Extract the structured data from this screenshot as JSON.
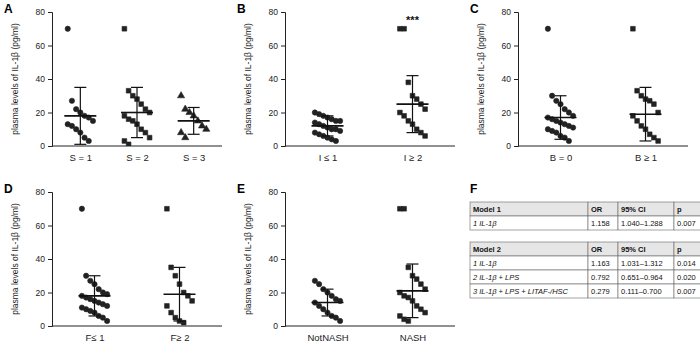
{
  "chart_data": [
    {
      "type": "scatter",
      "title": "A",
      "y_label": "plasma levels of IL-1β (pg/ml)",
      "categories": [
        "S = 1",
        "S = 2",
        "S = 3"
      ],
      "markers": [
        "circle",
        "square",
        "triangle"
      ],
      "color": "#222222",
      "points": [
        [
          70,
          27,
          22,
          20,
          18,
          17,
          15,
          13,
          12,
          10,
          8,
          5,
          3
        ],
        [
          70,
          33,
          30,
          28,
          25,
          22,
          20,
          18,
          16,
          15,
          13,
          10,
          8,
          5,
          3,
          1
        ],
        [
          30,
          22,
          20,
          18,
          15,
          12,
          10,
          8,
          5
        ]
      ],
      "means": [
        18,
        20,
        15
      ],
      "sd": [
        17,
        15,
        8
      ],
      "ylim": [
        0,
        80
      ],
      "yticks": [
        0,
        20,
        40,
        60,
        80
      ]
    },
    {
      "type": "scatter",
      "title": "B",
      "y_label": "plasma levels of IL-1β (pg/ml)",
      "categories": [
        "I ≤ 1",
        "I ≥ 2"
      ],
      "markers": [
        "circle",
        "square"
      ],
      "color": "#222222",
      "points": [
        [
          20,
          19,
          18,
          17,
          16,
          15,
          15,
          14,
          13,
          12,
          11,
          10,
          10,
          9,
          8,
          7,
          6,
          5,
          4,
          3
        ],
        [
          70,
          70,
          38,
          30,
          28,
          25,
          22,
          20,
          18,
          15,
          13,
          10,
          8,
          6
        ]
      ],
      "means": [
        12,
        25
      ],
      "sd": [
        6,
        17
      ],
      "annotations": [
        {
          "text": "***",
          "category": "I ≥ 2"
        }
      ],
      "ylim": [
        0,
        80
      ],
      "yticks": [
        0,
        20,
        40,
        60,
        80
      ]
    },
    {
      "type": "scatter",
      "title": "C",
      "y_label": "plasma levels of IL-1β (pg/ml)",
      "categories": [
        "B = 0",
        "B ≥ 1"
      ],
      "markers": [
        "circle",
        "square"
      ],
      "color": "#222222",
      "points": [
        [
          70,
          30,
          27,
          25,
          22,
          20,
          18,
          17,
          16,
          15,
          14,
          13,
          12,
          11,
          10,
          9,
          8,
          6,
          5,
          3
        ],
        [
          70,
          33,
          30,
          28,
          27,
          25,
          20,
          18,
          15,
          12,
          10,
          7,
          5,
          3
        ]
      ],
      "means": [
        17,
        19
      ],
      "sd": [
        13,
        16
      ],
      "ylim": [
        0,
        80
      ],
      "yticks": [
        0,
        20,
        40,
        60,
        80
      ]
    },
    {
      "type": "scatter",
      "title": "D",
      "y_label": "plasma levels of IL-1β (pg/ml)",
      "categories": [
        "F≤ 1",
        "F≥ 2"
      ],
      "markers": [
        "circle",
        "square"
      ],
      "color": "#222222",
      "points": [
        [
          70,
          30,
          27,
          25,
          22,
          20,
          19,
          18,
          17,
          16,
          15,
          14,
          13,
          12,
          11,
          10,
          9,
          8,
          6,
          5,
          3
        ],
        [
          70,
          35,
          30,
          25,
          20,
          18,
          15,
          12,
          8,
          5,
          3,
          2
        ]
      ],
      "means": [
        18,
        19
      ],
      "sd": [
        12,
        16
      ],
      "ylim": [
        0,
        80
      ],
      "yticks": [
        0,
        20,
        40,
        60,
        80
      ]
    },
    {
      "type": "scatter",
      "title": "E",
      "y_label": "plasma levels of IL-1β (pg/ml)",
      "categories": [
        "NotNASH",
        "NASH"
      ],
      "markers": [
        "circle",
        "square"
      ],
      "color": "#222222",
      "points": [
        [
          27,
          25,
          22,
          20,
          18,
          16,
          15,
          14,
          12,
          10,
          8,
          6,
          5,
          3
        ],
        [
          70,
          70,
          35,
          30,
          28,
          25,
          22,
          20,
          18,
          17,
          15,
          12,
          10,
          8,
          6,
          4,
          3
        ]
      ],
      "means": [
        14,
        21
      ],
      "sd": [
        8,
        16
      ],
      "ylim": [
        0,
        80
      ],
      "yticks": [
        0,
        20,
        40,
        60,
        80
      ]
    },
    {
      "type": "table",
      "title": "F",
      "tables": [
        {
          "columns": [
            "Model 1",
            "OR",
            "95% CI",
            "p"
          ],
          "rows": [
            [
              "1 IL-1β",
              "1.158",
              "1.040–1.288",
              "0.007"
            ]
          ]
        },
        {
          "columns": [
            "Model 2",
            "OR",
            "95% CI",
            "p"
          ],
          "rows": [
            [
              "1 IL-1β",
              "1.163",
              "1.031–1.312",
              "0.014"
            ],
            [
              "2 IL-1β + LPS",
              "0.792",
              "0.651–0.964",
              "0.020"
            ],
            [
              "3 IL-1β + LPS + LITAF-/HSC",
              "0.279",
              "0.111–0.700",
              "0.007"
            ]
          ]
        }
      ]
    }
  ]
}
